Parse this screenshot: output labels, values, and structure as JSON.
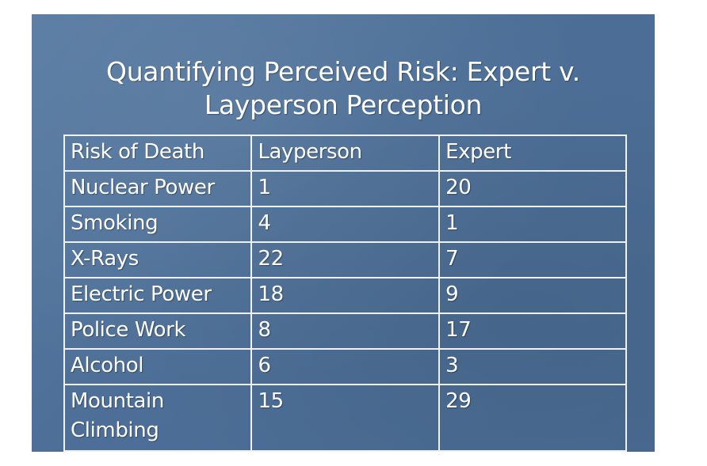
{
  "slide": {
    "title_line1": "Quantifying Perceived Risk: Expert v.",
    "title_line2": "Layperson Perception"
  },
  "table": {
    "headers": [
      "Risk of Death",
      "Layperson",
      "Expert"
    ],
    "rows": [
      [
        "Nuclear Power",
        "1",
        "20"
      ],
      [
        "Smoking",
        "4",
        "1"
      ],
      [
        "X-Rays",
        "22",
        "7"
      ],
      [
        "Electric Power",
        "18",
        "9"
      ],
      [
        "Police Work",
        "8",
        "17"
      ],
      [
        "Alcohol",
        "6",
        "3"
      ],
      [
        "Mountain Climbing",
        "15",
        "29"
      ]
    ]
  },
  "colors": {
    "slide_background": "#4f7199",
    "text": "#ffffff",
    "grid": "#eef2f7"
  }
}
